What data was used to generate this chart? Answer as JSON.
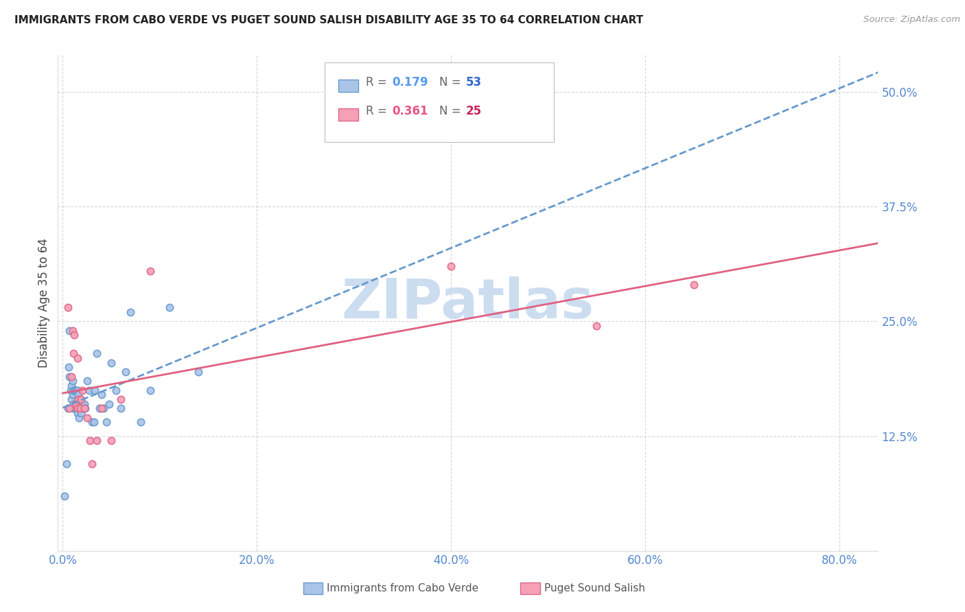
{
  "title": "IMMIGRANTS FROM CABO VERDE VS PUGET SOUND SALISH DISABILITY AGE 35 TO 64 CORRELATION CHART",
  "source": "Source: ZipAtlas.com",
  "xlabel_ticks": [
    "0.0%",
    "20.0%",
    "40.0%",
    "60.0%",
    "80.0%"
  ],
  "xlabel_tick_vals": [
    0.0,
    0.2,
    0.4,
    0.6,
    0.8
  ],
  "ylabel": "Disability Age 35 to 64",
  "ylabel_tick_vals": [
    0.125,
    0.25,
    0.375,
    0.5
  ],
  "xlim": [
    -0.005,
    0.84
  ],
  "ylim": [
    0.0,
    0.54
  ],
  "blue_R": "0.179",
  "blue_N": "53",
  "pink_R": "0.361",
  "pink_N": "25",
  "blue_color": "#aac4e8",
  "blue_edge_color": "#6699cc",
  "pink_color": "#f5a0b5",
  "pink_edge_color": "#dd6688",
  "blue_line_color": "#6699cc",
  "pink_line_color": "#e06080",
  "legend_R_blue_color": "#5599ee",
  "legend_N_blue_color": "#3366cc",
  "legend_R_pink_color": "#e85585",
  "legend_N_pink_color": "#cc2255",
  "watermark_text": "ZIPatlas",
  "watermark_color": "#ccddf0",
  "blue_x": [
    0.002,
    0.004,
    0.005,
    0.006,
    0.007,
    0.007,
    0.008,
    0.009,
    0.009,
    0.01,
    0.01,
    0.01,
    0.011,
    0.011,
    0.012,
    0.012,
    0.013,
    0.013,
    0.014,
    0.014,
    0.015,
    0.015,
    0.015,
    0.016,
    0.016,
    0.017,
    0.018,
    0.018,
    0.019,
    0.02,
    0.021,
    0.022,
    0.023,
    0.025,
    0.027,
    0.03,
    0.032,
    0.033,
    0.035,
    0.038,
    0.04,
    0.042,
    0.045,
    0.048,
    0.05,
    0.055,
    0.06,
    0.065,
    0.07,
    0.08,
    0.09,
    0.11,
    0.14
  ],
  "blue_y": [
    0.06,
    0.095,
    0.155,
    0.2,
    0.24,
    0.19,
    0.175,
    0.165,
    0.18,
    0.155,
    0.17,
    0.185,
    0.16,
    0.175,
    0.155,
    0.175,
    0.16,
    0.175,
    0.155,
    0.175,
    0.15,
    0.16,
    0.175,
    0.155,
    0.17,
    0.145,
    0.155,
    0.165,
    0.15,
    0.16,
    0.155,
    0.16,
    0.155,
    0.185,
    0.175,
    0.14,
    0.14,
    0.175,
    0.215,
    0.155,
    0.17,
    0.155,
    0.14,
    0.16,
    0.205,
    0.175,
    0.155,
    0.195,
    0.26,
    0.14,
    0.175,
    0.265,
    0.195
  ],
  "pink_x": [
    0.005,
    0.007,
    0.009,
    0.01,
    0.011,
    0.012,
    0.013,
    0.015,
    0.015,
    0.016,
    0.018,
    0.019,
    0.02,
    0.022,
    0.025,
    0.028,
    0.03,
    0.035,
    0.04,
    0.05,
    0.06,
    0.09,
    0.4,
    0.55,
    0.65
  ],
  "pink_y": [
    0.265,
    0.155,
    0.19,
    0.24,
    0.215,
    0.235,
    0.16,
    0.155,
    0.21,
    0.165,
    0.155,
    0.165,
    0.175,
    0.155,
    0.145,
    0.12,
    0.095,
    0.12,
    0.155,
    0.12,
    0.165,
    0.305,
    0.31,
    0.245,
    0.29
  ],
  "grid_color": "#cccccc",
  "bg_color": "#ffffff",
  "tick_label_color": "#5588cc",
  "axis_label_color": "#444444"
}
